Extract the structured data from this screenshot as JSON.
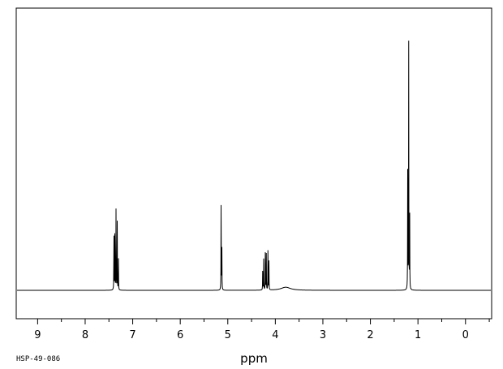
{
  "chart_data": {
    "type": "line",
    "xlabel": "ppm",
    "ylabel": "",
    "title": "",
    "spectrum_code": "HSP-49-086",
    "xlim": [
      9.45,
      -0.55
    ],
    "ylim": [
      -0.1,
      1.0
    ],
    "ticks": [
      9,
      8,
      7,
      6,
      5,
      4,
      3,
      2,
      1,
      0
    ],
    "tick_labels": [
      "9",
      "8",
      "7",
      "6",
      "5",
      "4",
      "3",
      "2",
      "1",
      "0"
    ],
    "grid": false,
    "legend": "none",
    "line_color": "#000000",
    "peaks": [
      {
        "ppm": 7.395,
        "height": 0.26
      },
      {
        "ppm": 7.375,
        "height": 0.3
      },
      {
        "ppm": 7.35,
        "height": 0.36
      },
      {
        "ppm": 7.325,
        "height": 0.27
      },
      {
        "ppm": 7.3,
        "height": 0.12
      },
      {
        "ppm": 5.14,
        "height": 0.39
      },
      {
        "ppm": 5.125,
        "height": 0.18
      },
      {
        "ppm": 4.265,
        "height": 0.1
      },
      {
        "ppm": 4.245,
        "height": 0.12
      },
      {
        "ppm": 4.21,
        "height": 0.17
      },
      {
        "ppm": 4.19,
        "height": 0.14
      },
      {
        "ppm": 4.155,
        "height": 0.16
      },
      {
        "ppm": 4.135,
        "height": 0.12
      },
      {
        "ppm": 1.215,
        "height": 0.56
      },
      {
        "ppm": 1.195,
        "height": 0.95
      },
      {
        "ppm": 1.175,
        "height": 0.38
      }
    ],
    "broad_peaks": [
      {
        "ppm": 3.78,
        "height": 0.012,
        "width": 0.12
      }
    ]
  }
}
